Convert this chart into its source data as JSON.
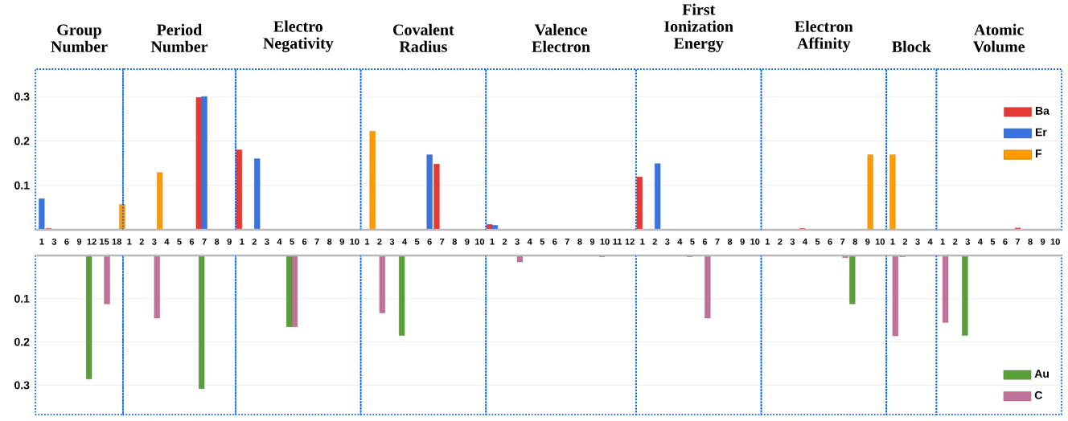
{
  "chart_data": [
    {
      "type": "bar",
      "title": "Group Number",
      "categories": [
        "1",
        "3",
        "6",
        "9",
        "12",
        "15",
        "18"
      ],
      "series": [
        {
          "color": "#e53935",
          "values": [
            null,
            0.003,
            null,
            null,
            null,
            null,
            null
          ]
        },
        {
          "color": "#3a73e0",
          "values": [
            0.07,
            null,
            null,
            null,
            null,
            null,
            null
          ]
        },
        {
          "color": "#ff9a00",
          "values": [
            null,
            null,
            null,
            null,
            null,
            null,
            0.057
          ]
        }
      ],
      "ylim": [
        0,
        0.362
      ],
      "yticks": [
        0.1,
        0.2,
        0.3
      ],
      "grid": "y"
    },
    {
      "type": "bar",
      "title": "Period Number",
      "categories": [
        "1",
        "2",
        "3",
        "4",
        "5",
        "6",
        "7",
        "8",
        "9"
      ],
      "series": [
        {
          "color": "#e53935",
          "values": [
            null,
            null,
            null,
            null,
            null,
            null,
            0.298,
            null,
            null
          ]
        },
        {
          "color": "#3a73e0",
          "values": [
            null,
            null,
            null,
            null,
            null,
            null,
            0.3,
            null,
            null
          ]
        },
        {
          "color": "#ff9a00",
          "values": [
            null,
            null,
            0.129,
            null,
            null,
            null,
            null,
            null,
            null
          ]
        }
      ],
      "ylim": [
        0,
        0.362
      ],
      "yticks": [
        0.1,
        0.2,
        0.3
      ],
      "grid": "y",
      "tick_labels": "x"
    },
    {
      "type": "bar",
      "title": "Electro Negativity",
      "categories": [
        "1",
        "2",
        "3",
        "4",
        "5",
        "6",
        "7",
        "8",
        "9",
        "10"
      ],
      "series": [
        {
          "color": "#e53935",
          "values": [
            0.18,
            null,
            null,
            null,
            null,
            null,
            null,
            null,
            null,
            null
          ]
        },
        {
          "color": "#3a73e0",
          "values": [
            null,
            0.16,
            null,
            null,
            null,
            null,
            null,
            null,
            null,
            null
          ]
        },
        {
          "color": "#ff9a00",
          "values": [
            null,
            null,
            null,
            null,
            null,
            null,
            null,
            null,
            null,
            null
          ]
        }
      ],
      "ylim": [
        0,
        0.362
      ],
      "yticks": [
        0.1,
        0.2,
        0.3
      ],
      "grid": "y",
      "tick_labels": "x"
    },
    {
      "type": "bar",
      "title": "Covalent Radius",
      "categories": [
        "1",
        "2",
        "3",
        "4",
        "5",
        "6",
        "7",
        "8",
        "9",
        "10"
      ],
      "series": [
        {
          "color": "#e53935",
          "values": [
            null,
            null,
            null,
            null,
            null,
            null,
            0.148,
            null,
            null,
            null
          ]
        },
        {
          "color": "#3a73e0",
          "values": [
            null,
            null,
            null,
            null,
            null,
            0.169,
            null,
            null,
            null,
            null
          ]
        },
        {
          "color": "#ff9a00",
          "values": [
            0.222,
            null,
            null,
            null,
            null,
            null,
            null,
            null,
            null,
            null
          ]
        }
      ],
      "ylim": [
        0,
        0.362
      ],
      "yticks": [
        0.1,
        0.2,
        0.3
      ],
      "grid": "y",
      "tick_labels": "x"
    },
    {
      "type": "bar",
      "title": "Valence Electron",
      "categories": [
        "1",
        "2",
        "3",
        "4",
        "5",
        "6",
        "7",
        "8",
        "9",
        "10",
        "11",
        "12"
      ],
      "series": [
        {
          "color": "#e53935",
          "values": [
            0.012,
            null,
            null,
            null,
            null,
            null,
            null,
            null,
            null,
            null,
            null,
            null
          ]
        },
        {
          "color": "#3a73e0",
          "values": [
            0.01,
            null,
            null,
            null,
            null,
            null,
            null,
            null,
            null,
            null,
            null,
            null
          ]
        },
        {
          "color": "#ff9a00",
          "values": [
            null,
            null,
            null,
            null,
            null,
            null,
            null,
            null,
            null,
            null,
            null,
            null
          ]
        }
      ],
      "ylim": [
        0,
        0.362
      ],
      "yticks": [
        0.1,
        0.2,
        0.3
      ],
      "grid": "y",
      "tick_labels": "x"
    },
    {
      "type": "bar",
      "title": "First Ionization Energy",
      "categories": [
        "1",
        "2",
        "3",
        "4",
        "5",
        "6",
        "7",
        "8",
        "9",
        "10"
      ],
      "series": [
        {
          "color": "#e53935",
          "values": [
            0.119,
            null,
            null,
            null,
            null,
            null,
            null,
            null,
            null,
            null
          ]
        },
        {
          "color": "#3a73e0",
          "values": [
            null,
            0.149,
            null,
            null,
            null,
            null,
            null,
            null,
            null,
            null
          ]
        },
        {
          "color": "#ff9a00",
          "values": [
            null,
            null,
            null,
            null,
            null,
            null,
            null,
            null,
            null,
            null
          ]
        }
      ],
      "ylim": [
        0,
        0.362
      ],
      "yticks": [
        0.1,
        0.2,
        0.3
      ],
      "grid": "y",
      "tick_labels": "x"
    },
    {
      "type": "bar",
      "title": "Electron Affinity",
      "categories": [
        "1",
        "2",
        "3",
        "4",
        "5",
        "6",
        "7",
        "8",
        "9",
        "10"
      ],
      "series": [
        {
          "color": "#e53935",
          "values": [
            null,
            null,
            null,
            0.003,
            null,
            null,
            null,
            null,
            null,
            null
          ]
        },
        {
          "color": "#3a73e0",
          "values": [
            null,
            null,
            null,
            null,
            null,
            null,
            null,
            null,
            null,
            null
          ]
        },
        {
          "color": "#ff9a00",
          "values": [
            null,
            null,
            null,
            null,
            null,
            null,
            null,
            null,
            0.169,
            null
          ]
        }
      ],
      "ylim": [
        0,
        0.362
      ],
      "yticks": [
        0.1,
        0.2,
        0.3
      ],
      "grid": "y",
      "tick_labels": "x"
    },
    {
      "type": "bar",
      "title": "Block",
      "categories": [
        "1",
        "2",
        "3",
        "4"
      ],
      "series": [
        {
          "color": "#e53935",
          "values": [
            null,
            null,
            null,
            null
          ]
        },
        {
          "color": "#3a73e0",
          "values": [
            null,
            null,
            null,
            null
          ]
        },
        {
          "color": "#ff9a00",
          "values": [
            0.169,
            null,
            null,
            null
          ]
        }
      ],
      "ylim": [
        0,
        0.362
      ],
      "yticks": [
        0.1,
        0.2,
        0.3
      ],
      "grid": "y",
      "tick_labels": "x"
    },
    {
      "type": "bar",
      "title": "Atomic Volume",
      "categories": [
        "1",
        "2",
        "3",
        "4",
        "5",
        "6",
        "7",
        "8",
        "9",
        "10"
      ],
      "series": [
        {
          "name": "Ba",
          "color": "#e53935",
          "values": [
            null,
            null,
            null,
            null,
            null,
            null,
            0.004,
            null,
            null,
            null
          ]
        },
        {
          "name": "Er",
          "color": "#3a73e0",
          "values": [
            null,
            null,
            null,
            null,
            null,
            null,
            null,
            null,
            null,
            null
          ]
        },
        {
          "name": "F",
          "color": "#ff9a00",
          "values": [
            null,
            null,
            null,
            null,
            null,
            null,
            null,
            null,
            null,
            null
          ]
        }
      ],
      "ylim": [
        0,
        0.362
      ],
      "yticks": [
        0.1,
        0.2,
        0.3
      ],
      "grid": "y",
      "tick_labels": "x",
      "legend": "right"
    },
    {
      "type": "bar",
      "categories": [
        "1",
        "3",
        "6",
        "9",
        "12",
        "15",
        "18"
      ],
      "series": [
        {
          "color": "#5a9e3a",
          "values": [
            null,
            null,
            null,
            null,
            0.286,
            null,
            null
          ]
        },
        {
          "color": "#c0739a",
          "values": [
            null,
            null,
            null,
            null,
            null,
            0.112,
            null
          ]
        }
      ],
      "ylim": [
        0.368,
        0
      ],
      "yticks": [
        0.1,
        0.2,
        0.3
      ],
      "grid": "y",
      "tick_labels": "y"
    },
    {
      "type": "bar",
      "categories": [
        "1",
        "2",
        "3",
        "4",
        "5",
        "6",
        "7",
        "8",
        "9"
      ],
      "series": [
        {
          "color": "#5a9e3a",
          "values": [
            null,
            null,
            null,
            null,
            null,
            null,
            0.308,
            null,
            null
          ]
        },
        {
          "color": "#c0739a",
          "values": [
            null,
            null,
            0.145,
            null,
            null,
            null,
            null,
            null,
            null
          ]
        }
      ],
      "ylim": [
        0.368,
        0
      ],
      "yticks": [
        0.1,
        0.2,
        0.3
      ],
      "grid": "y",
      "tick_labels": false
    },
    {
      "type": "bar",
      "categories": [
        "1",
        "2",
        "3",
        "4",
        "5",
        "6",
        "7",
        "8",
        "9",
        "10"
      ],
      "series": [
        {
          "color": "#5a9e3a",
          "values": [
            null,
            null,
            null,
            null,
            0.165,
            null,
            null,
            null,
            null,
            null
          ]
        },
        {
          "color": "#c0739a",
          "values": [
            null,
            null,
            null,
            null,
            0.165,
            null,
            null,
            null,
            null,
            null
          ]
        }
      ],
      "ylim": [
        0.368,
        0
      ],
      "yticks": [
        0.1,
        0.2,
        0.3
      ],
      "grid": "y",
      "tick_labels": false
    },
    {
      "type": "bar",
      "categories": [
        "1",
        "2",
        "3",
        "4",
        "5",
        "6",
        "7",
        "8",
        "9",
        "10"
      ],
      "series": [
        {
          "color": "#5a9e3a",
          "values": [
            null,
            null,
            null,
            0.185,
            null,
            null,
            null,
            null,
            null,
            null
          ]
        },
        {
          "color": "#c0739a",
          "values": [
            null,
            0.133,
            null,
            null,
            null,
            null,
            null,
            null,
            null,
            null
          ]
        }
      ],
      "ylim": [
        0.368,
        0
      ],
      "yticks": [
        0.1,
        0.2,
        0.3
      ],
      "grid": "y",
      "tick_labels": false
    },
    {
      "type": "bar",
      "categories": [
        "1",
        "2",
        "3",
        "4",
        "5",
        "6",
        "7",
        "8",
        "9",
        "10",
        "11",
        "12"
      ],
      "series": [
        {
          "color": "#5a9e3a",
          "values": [
            null,
            null,
            null,
            null,
            null,
            null,
            null,
            null,
            null,
            0.003,
            null,
            null
          ]
        },
        {
          "color": "#c0739a",
          "values": [
            null,
            null,
            0.015,
            null,
            null,
            null,
            null,
            null,
            null,
            null,
            null,
            null
          ]
        }
      ],
      "ylim": [
        0.368,
        0
      ],
      "yticks": [
        0.1,
        0.2,
        0.3
      ],
      "grid": "y",
      "tick_labels": false
    },
    {
      "type": "bar",
      "categories": [
        "1",
        "2",
        "3",
        "4",
        "5",
        "6",
        "7",
        "8",
        "9",
        "10"
      ],
      "series": [
        {
          "color": "#5a9e3a",
          "values": [
            null,
            null,
            null,
            null,
            0.003,
            null,
            null,
            null,
            null,
            null
          ]
        },
        {
          "color": "#c0739a",
          "values": [
            null,
            null,
            null,
            null,
            null,
            0.145,
            null,
            null,
            null,
            null
          ]
        }
      ],
      "ylim": [
        0.368,
        0
      ],
      "yticks": [
        0.1,
        0.2,
        0.3
      ],
      "grid": "y",
      "tick_labels": false
    },
    {
      "type": "bar",
      "categories": [
        "1",
        "2",
        "3",
        "4",
        "5",
        "6",
        "7",
        "8",
        "9",
        "10"
      ],
      "series": [
        {
          "color": "#5a9e3a",
          "values": [
            null,
            null,
            null,
            null,
            null,
            null,
            null,
            0.112,
            null,
            null
          ]
        },
        {
          "color": "#c0739a",
          "values": [
            null,
            null,
            null,
            null,
            null,
            null,
            0.005,
            null,
            null,
            null
          ]
        }
      ],
      "ylim": [
        0.368,
        0
      ],
      "yticks": [
        0.1,
        0.2,
        0.3
      ],
      "grid": "y",
      "tick_labels": false
    },
    {
      "type": "bar",
      "categories": [
        "1",
        "2",
        "3",
        "4"
      ],
      "series": [
        {
          "color": "#5a9e3a",
          "values": [
            null,
            0.003,
            null,
            null
          ]
        },
        {
          "color": "#c0739a",
          "values": [
            0.186,
            null,
            null,
            null
          ]
        }
      ],
      "ylim": [
        0.368,
        0
      ],
      "yticks": [
        0.1,
        0.2,
        0.3
      ],
      "grid": "y",
      "tick_labels": false
    },
    {
      "type": "bar",
      "categories": [
        "1",
        "2",
        "3",
        "4",
        "5",
        "6",
        "7",
        "8",
        "9",
        "10"
      ],
      "series": [
        {
          "name": "Au",
          "color": "#5a9e3a",
          "values": [
            null,
            null,
            0.185,
            null,
            null,
            null,
            null,
            null,
            null,
            null
          ]
        },
        {
          "name": "C",
          "color": "#c0739a",
          "values": [
            0.155,
            null,
            null,
            null,
            null,
            null,
            null,
            null,
            null,
            null
          ]
        }
      ],
      "ylim": [
        0.368,
        0
      ],
      "yticks": [
        0.1,
        0.2,
        0.3
      ],
      "grid": "y",
      "tick_labels": false,
      "legend": "bottom right"
    }
  ]
}
